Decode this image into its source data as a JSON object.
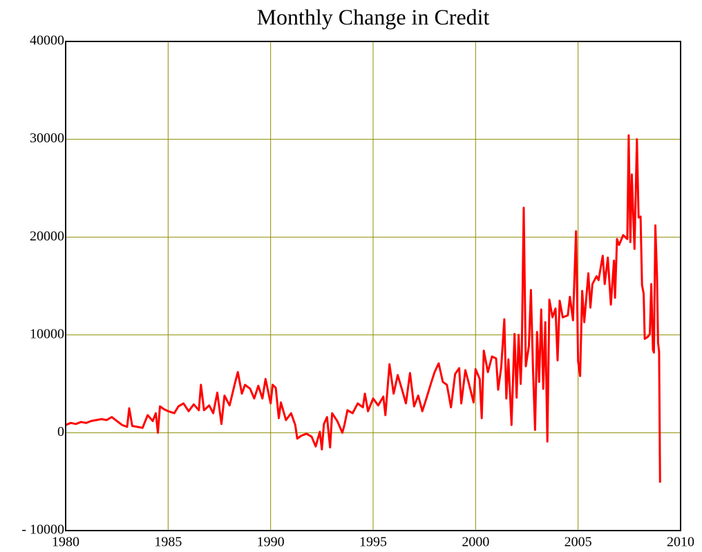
{
  "chart_data": {
    "type": "line",
    "title": "Monthly Change in Credit",
    "xlim": [
      1980,
      2010
    ],
    "xticks": [
      1980,
      1985,
      1990,
      1995,
      2000,
      2005,
      2010
    ],
    "ylim": [
      -10000,
      40000
    ],
    "yticks": [
      {
        "value": -10000,
        "label": "- 10000"
      },
      0,
      10000,
      20000,
      30000,
      40000
    ],
    "grid": true,
    "grid_color": "#8c8c00",
    "x": [
      1980,
      1980.25,
      1980.5,
      1980.75,
      1981,
      1981.25,
      1981.5,
      1981.75,
      1982,
      1982.25,
      1982.5,
      1982.75,
      1983,
      1983.1,
      1983.25,
      1983.5,
      1983.75,
      1984,
      1984.25,
      1984.4,
      1984.5,
      1984.6,
      1984.8,
      1985,
      1985.3,
      1985.5,
      1985.75,
      1986,
      1986.25,
      1986.5,
      1986.6,
      1986.75,
      1987,
      1987.2,
      1987.4,
      1987.6,
      1987.75,
      1988,
      1988.25,
      1988.4,
      1988.6,
      1988.75,
      1989,
      1989.2,
      1989.4,
      1989.6,
      1989.75,
      1990,
      1990.1,
      1990.25,
      1990.4,
      1990.5,
      1990.75,
      1991,
      1991.2,
      1991.3,
      1991.5,
      1991.75,
      1992,
      1992.2,
      1992.4,
      1992.5,
      1992.6,
      1992.75,
      1992.9,
      1993,
      1993.25,
      1993.5,
      1993.6,
      1993.75,
      1994,
      1994.25,
      1994.5,
      1994.6,
      1994.75,
      1995,
      1995.25,
      1995.5,
      1995.6,
      1995.8,
      1996,
      1996.2,
      1996.4,
      1996.6,
      1996.8,
      1997,
      1997.2,
      1997.4,
      1997.6,
      1997.8,
      1998,
      1998.2,
      1998.4,
      1998.6,
      1998.8,
      1999,
      1999.2,
      1999.3,
      1999.5,
      1999.7,
      1999.9,
      2000,
      2000.2,
      2000.3,
      2000.4,
      2000.6,
      2000.8,
      2001,
      2001.1,
      2001.25,
      2001.4,
      2001.5,
      2001.6,
      2001.75,
      2001.9,
      2002,
      2002.1,
      2002.2,
      2002.25,
      2002.35,
      2002.45,
      2002.6,
      2002.7,
      2002.8,
      2002.9,
      2003,
      2003.1,
      2003.2,
      2003.3,
      2003.4,
      2003.5,
      2003.6,
      2003.75,
      2003.9,
      2004,
      2004.1,
      2004.25,
      2004.5,
      2004.6,
      2004.75,
      2004.9,
      2005,
      2005.1,
      2005.2,
      2005.3,
      2005.5,
      2005.6,
      2005.7,
      2005.9,
      2006,
      2006.2,
      2006.3,
      2006.45,
      2006.6,
      2006.75,
      2006.8,
      2006.9,
      2007,
      2007.2,
      2007.4,
      2007.47,
      2007.55,
      2007.62,
      2007.75,
      2007.87,
      2007.95,
      2008.05,
      2008.12,
      2008.2,
      2008.25,
      2008.4,
      2008.5,
      2008.57,
      2008.65,
      2008.7,
      2008.77,
      2008.85,
      2008.9,
      2008.95,
      2009.0
    ],
    "series": [
      {
        "name": "Monthly Change in Credit",
        "color": "#ff0000",
        "values": [
          800,
          1000,
          900,
          1100,
          1000,
          1200,
          1300,
          1400,
          1300,
          1600,
          1200,
          800,
          600,
          2500,
          700,
          600,
          500,
          1800,
          1200,
          2000,
          0,
          2700,
          2400,
          2200,
          2000,
          2700,
          3000,
          2200,
          2900,
          2300,
          4900,
          2300,
          2800,
          2000,
          4100,
          900,
          3800,
          2800,
          5000,
          6200,
          4000,
          4900,
          4500,
          3500,
          4800,
          3500,
          5500,
          3000,
          4900,
          4600,
          1500,
          3100,
          1300,
          2000,
          800,
          -600,
          -300,
          -100,
          -400,
          -1400,
          100,
          -1700,
          900,
          1600,
          -1500,
          2000,
          1200,
          0,
          800,
          2300,
          2000,
          3000,
          2600,
          4000,
          2200,
          3500,
          2800,
          3700,
          1800,
          7000,
          4000,
          5900,
          4500,
          3000,
          6100,
          2700,
          3800,
          2200,
          3500,
          4900,
          6200,
          7100,
          5200,
          4900,
          2600,
          6000,
          6600,
          3000,
          6400,
          4800,
          3100,
          6500,
          5500,
          1500,
          8400,
          6200,
          7800,
          7600,
          4400,
          6700,
          11600,
          3500,
          7500,
          800,
          10100,
          3600,
          10000,
          5000,
          8000,
          23000,
          6800,
          8900,
          14600,
          6500,
          300,
          10300,
          5200,
          12600,
          4500,
          11300,
          -900,
          13600,
          11800,
          12700,
          7400,
          13500,
          11800,
          12000,
          13900,
          11500,
          20600,
          7300,
          5800,
          14500,
          11300,
          16300,
          12800,
          15200,
          16000,
          15600,
          18100,
          15200,
          17900,
          13100,
          17600,
          13800,
          19800,
          19200,
          20200,
          19800,
          30400,
          19500,
          26400,
          18800,
          30000,
          22000,
          22100,
          15100,
          14200,
          9600,
          9800,
          10100,
          15200,
          8500,
          8200,
          21200,
          16000,
          9200,
          8300,
          -5100
        ]
      }
    ]
  }
}
